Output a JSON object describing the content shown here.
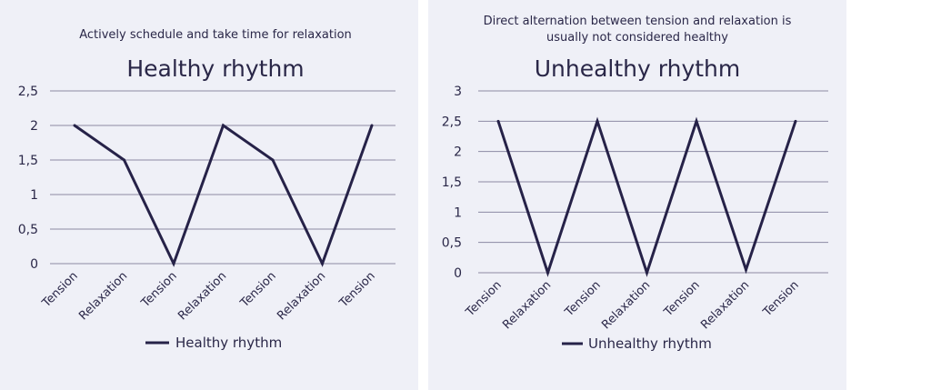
{
  "colors": {
    "panel_bg": "#eff0f7",
    "line": "#262248",
    "grid": "#8c8aa3",
    "text": "#2a2748"
  },
  "chart_data": [
    {
      "type": "line",
      "subtitle_lines": [
        "Actively schedule and take time for relaxation"
      ],
      "title": "Healthy rhythm",
      "categories": [
        "Tension",
        "Relaxation",
        "Tension",
        "Relaxation",
        "Tension",
        "Relaxation",
        "Tension"
      ],
      "series": [
        {
          "name": "Healthy rhythm",
          "values": [
            2,
            1.5,
            0,
            2,
            1.5,
            0,
            2
          ]
        }
      ],
      "ylim": [
        0,
        2.5
      ],
      "yticks": [
        "0",
        "0,5",
        "1",
        "1,5",
        "2",
        "2,5"
      ],
      "grid": true,
      "legend": "bottom"
    },
    {
      "type": "line",
      "subtitle_lines": [
        "Direct alternation between tension and relaxation is",
        "usually not considered healthy"
      ],
      "title": "Unhealthy rhythm",
      "categories": [
        "Tension",
        "Relaxation",
        "Tension",
        "Relaxation",
        "Tension",
        "Relaxation",
        "Tension"
      ],
      "series": [
        {
          "name": "Unhealthy rhythm",
          "values": [
            2.5,
            0,
            2.5,
            0,
            2.5,
            0.05,
            2.5
          ]
        }
      ],
      "ylim": [
        0,
        3
      ],
      "yticks": [
        "0",
        "0,5",
        "1",
        "1,5",
        "2",
        "2,5",
        "3"
      ],
      "grid": true,
      "legend": "bottom"
    }
  ]
}
